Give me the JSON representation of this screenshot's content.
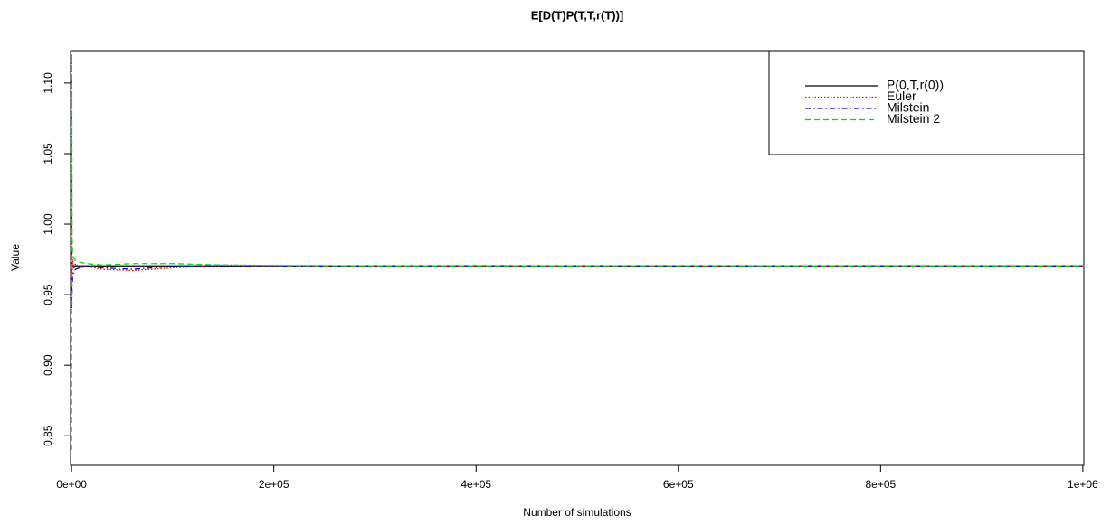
{
  "chart_data": {
    "type": "line",
    "title": "E[D(T)P(T,T,r(T))]",
    "x_label": "Number of simulations",
    "y_label": "Value",
    "x": [
      1,
      200,
      500,
      1000,
      2000,
      4000,
      8000,
      15000,
      30000,
      60000,
      100000,
      150000,
      250000,
      400000,
      600000,
      800000,
      1000000
    ],
    "series": [
      {
        "name": "P(0,T,r(0))",
        "color": "#000000",
        "dash": "none",
        "values": [
          0.9704,
          0.9704,
          0.9704,
          0.9704,
          0.9704,
          0.9704,
          0.9704,
          0.9704,
          0.9704,
          0.9704,
          0.9704,
          0.9704,
          0.9704,
          0.9704,
          0.9704,
          0.9704,
          0.9704
        ]
      },
      {
        "name": "Euler",
        "color": "#ff0000",
        "dash": "1.5,2",
        "values": [
          0.97,
          1.06,
          0.96,
          0.975,
          0.968,
          0.972,
          0.969,
          0.97,
          0.968,
          0.967,
          0.969,
          0.971,
          0.97,
          0.9705,
          0.9703,
          0.9704,
          0.9704
        ]
      },
      {
        "name": "Milstein",
        "color": "#0000ff",
        "dash": "6,3,1.5,3",
        "values": [
          1.12,
          0.94,
          0.955,
          0.962,
          0.966,
          0.968,
          0.969,
          0.97,
          0.969,
          0.968,
          0.97,
          0.97,
          0.9702,
          0.9705,
          0.9703,
          0.9704,
          0.9703
        ]
      },
      {
        "name": "Milstein 2",
        "color": "#00dd00",
        "dash": "6,4",
        "values": [
          0.84,
          1.12,
          0.99,
          0.98,
          0.976,
          0.974,
          0.973,
          0.972,
          0.971,
          0.972,
          0.972,
          0.971,
          0.9705,
          0.9704,
          0.9705,
          0.9704,
          0.9704
        ]
      }
    ],
    "xlim": [
      -1000,
      1001000
    ],
    "ylim": [
      0.829,
      1.123
    ],
    "xticks": [
      {
        "value": 0,
        "label": "0e+00"
      },
      {
        "value": 200000,
        "label": "2e+05"
      },
      {
        "value": 400000,
        "label": "4e+05"
      },
      {
        "value": 600000,
        "label": "6e+05"
      },
      {
        "value": 800000,
        "label": "8e+05"
      },
      {
        "value": 1000000,
        "label": "1e+06"
      }
    ],
    "yticks": [
      0.85,
      {
        "value": 0.9,
        "label": "0.90"
      },
      0.95,
      {
        "value": 1.0,
        "label": "1.00"
      },
      1.05,
      {
        "value": 1.1,
        "label": "1.10"
      }
    ],
    "legend": "topright"
  }
}
